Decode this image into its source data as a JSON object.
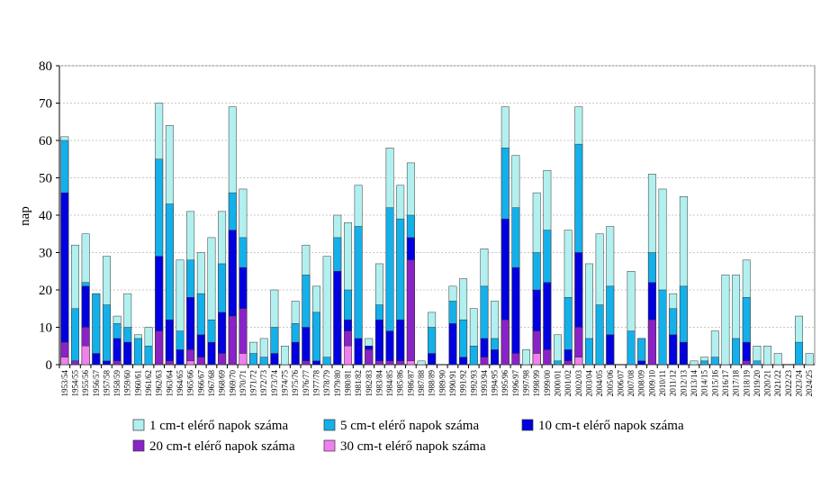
{
  "chart_data": {
    "type": "bar",
    "barmode": "overlay",
    "y_label": "nap",
    "ylim": [
      0,
      80
    ],
    "yticks": [
      0,
      10,
      20,
      30,
      40,
      50,
      60,
      70,
      80
    ],
    "grid": true,
    "legend": "bottom",
    "categories": [
      "1953/54",
      "1954/55",
      "1955/56",
      "1956/57",
      "1957/58",
      "1958/59",
      "1959/60",
      "1960/61",
      "1961/62",
      "1962/63",
      "1963/64",
      "1964/65",
      "1965/66",
      "1966/67",
      "1967/68",
      "1968/69",
      "1969/70",
      "1970/71",
      "1971/72",
      "1972/73",
      "1973/74",
      "1974/75",
      "1975/76",
      "1976/77",
      "1977/78",
      "1978/79",
      "1979/80",
      "1980/81",
      "1981/82",
      "1982/83",
      "1983/84",
      "1984/85",
      "1985/86",
      "1986/87",
      "1987/88",
      "1988/89",
      "1989/90",
      "1990/91",
      "1991/92",
      "1992/93",
      "1993/94",
      "1994/95",
      "1995/96",
      "1996/97",
      "1997/98",
      "1998/99",
      "1999/00",
      "2000/01",
      "2001/02",
      "2002/03",
      "2003/04",
      "2004/05",
      "2005/06",
      "2006/07",
      "2007/08",
      "2008/09",
      "2009/10",
      "2010/11",
      "2011/12",
      "2012/13",
      "2013/14",
      "2014/15",
      "2015/16",
      "2016/17",
      "2017/18",
      "2018/19",
      "2019/20",
      "2020/21",
      "2021/22",
      "2022/23",
      "2023/24",
      "2024/25"
    ],
    "series": [
      {
        "name": "1 cm-t elérő napok száma",
        "color": "#b2f0f0",
        "values": [
          61,
          32,
          35,
          19,
          29,
          13,
          19,
          8,
          10,
          70,
          64,
          28,
          41,
          30,
          34,
          41,
          69,
          47,
          6,
          7,
          20,
          5,
          17,
          32,
          21,
          29,
          40,
          38,
          48,
          7,
          27,
          58,
          48,
          54,
          1,
          14,
          0,
          21,
          23,
          15,
          31,
          17,
          69,
          56,
          4,
          46,
          52,
          8,
          36,
          69,
          27,
          35,
          37,
          0,
          25,
          7,
          51,
          47,
          19,
          45,
          1,
          2,
          9,
          24,
          24,
          28,
          5,
          5,
          3,
          0,
          13,
          3
        ]
      },
      {
        "name": "5 cm-t elérő napok száma",
        "color": "#14b0ea",
        "values": [
          60,
          15,
          22,
          19,
          16,
          11,
          10,
          7,
          5,
          55,
          43,
          9,
          28,
          19,
          12,
          27,
          46,
          34,
          3,
          2,
          10,
          0,
          11,
          24,
          14,
          2,
          34,
          20,
          37,
          5,
          16,
          42,
          39,
          40,
          0,
          10,
          0,
          17,
          12,
          5,
          21,
          7,
          58,
          42,
          0,
          30,
          36,
          1,
          18,
          59,
          7,
          16,
          21,
          0,
          9,
          7,
          30,
          20,
          15,
          21,
          0,
          1,
          2,
          0,
          7,
          18,
          1,
          0,
          0,
          0,
          6,
          0
        ]
      },
      {
        "name": "10 cm-t elérő napok száma",
        "color": "#0000e0",
        "values": [
          46,
          1,
          21,
          3,
          1,
          7,
          6,
          0,
          0,
          29,
          12,
          4,
          18,
          8,
          6,
          14,
          36,
          26,
          0,
          0,
          3,
          0,
          6,
          10,
          1,
          0,
          25,
          12,
          7,
          5,
          12,
          9,
          12,
          34,
          0,
          3,
          0,
          11,
          2,
          0,
          7,
          4,
          39,
          26,
          0,
          20,
          22,
          0,
          4,
          30,
          0,
          0,
          8,
          0,
          0,
          1,
          22,
          0,
          8,
          6,
          0,
          0,
          0,
          0,
          0,
          6,
          0,
          0,
          0,
          0,
          0,
          0
        ]
      },
      {
        "name": "20 cm-t elérő napok száma",
        "color": "#8a22c8",
        "values": [
          6,
          1,
          10,
          0,
          0,
          1,
          0,
          0,
          0,
          9,
          1,
          0,
          4,
          2,
          0,
          3,
          13,
          15,
          0,
          0,
          0,
          0,
          0,
          1,
          0,
          0,
          0,
          9,
          0,
          4,
          1,
          1,
          1,
          28,
          0,
          0,
          0,
          0,
          0,
          0,
          2,
          0,
          12,
          3,
          0,
          9,
          4,
          0,
          1,
          10,
          0,
          0,
          0,
          0,
          0,
          0,
          12,
          0,
          0,
          0,
          0,
          0,
          0,
          0,
          0,
          1,
          0,
          0,
          0,
          0,
          0,
          0
        ]
      },
      {
        "name": "30 cm-t elérő napok száma",
        "color": "#f080f0",
        "values": [
          2,
          0,
          5,
          0,
          0,
          0,
          0,
          0,
          0,
          0,
          0,
          0,
          1,
          0,
          0,
          0,
          0,
          3,
          0,
          0,
          0,
          0,
          0,
          0,
          0,
          0,
          0,
          5,
          0,
          0,
          0,
          0,
          0,
          1,
          0,
          0,
          0,
          0,
          0,
          0,
          0,
          0,
          0,
          0,
          0,
          3,
          0,
          0,
          0,
          2,
          0,
          0,
          0,
          0,
          0,
          0,
          0,
          0,
          0,
          0,
          0,
          0,
          0,
          0,
          0,
          0,
          0,
          0,
          0,
          0,
          0,
          0
        ]
      }
    ]
  }
}
